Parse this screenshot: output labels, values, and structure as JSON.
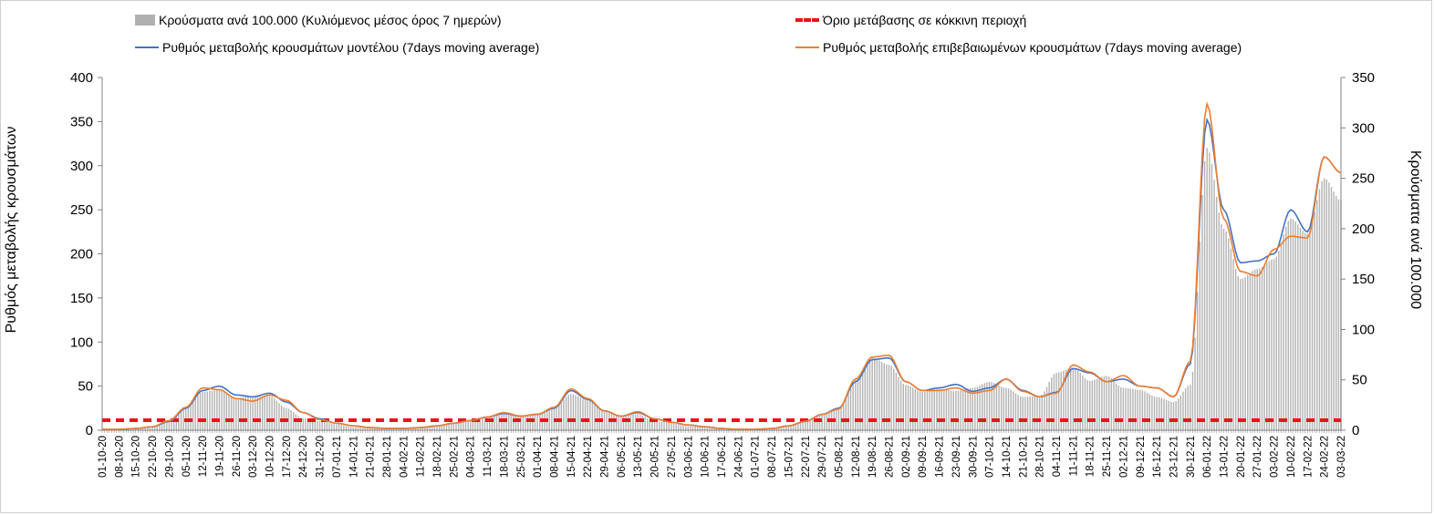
{
  "colors": {
    "bars": "#b4b4b4",
    "model_line": "#4472c4",
    "confirmed_line": "#ed7d31",
    "threshold": "#e8141c",
    "axis": "#808080"
  },
  "chart_data": {
    "type": "bar+line",
    "legend_position": "top",
    "grid": false,
    "y_left": {
      "label": "Ρυθμός μεταβολής κρουσμάτων",
      "min": 0,
      "max": 400,
      "ticks": [
        0,
        50,
        100,
        150,
        200,
        250,
        300,
        350,
        400
      ]
    },
    "y_right": {
      "label": "Κρούσματα ανά 100.000",
      "min": 0,
      "max": 350,
      "ticks": [
        0,
        50,
        100,
        150,
        200,
        250,
        300,
        350
      ]
    },
    "x_start_date": "01-10-20",
    "x_end_date": "03-03-22",
    "x_tick_labels": [
      "01-10-20",
      "08-10-20",
      "15-10-20",
      "22-10-20",
      "29-10-20",
      "05-11-20",
      "12-11-20",
      "19-11-20",
      "26-11-20",
      "03-12-20",
      "10-12-20",
      "17-12-20",
      "24-12-20",
      "31-12-20",
      "07-01-21",
      "14-01-21",
      "21-01-21",
      "28-01-21",
      "04-02-21",
      "11-02-21",
      "18-02-21",
      "25-02-21",
      "04-03-21",
      "11-03-21",
      "18-03-21",
      "25-03-21",
      "01-04-21",
      "08-04-21",
      "15-04-21",
      "22-04-21",
      "29-04-21",
      "06-05-21",
      "13-05-21",
      "20-05-21",
      "27-05-21",
      "03-06-21",
      "10-06-21",
      "17-06-21",
      "24-06-21",
      "01-07-21",
      "08-07-21",
      "15-07-21",
      "22-07-21",
      "29-07-21",
      "05-08-21",
      "12-08-21",
      "19-08-21",
      "26-08-21",
      "02-09-21",
      "09-09-21",
      "16-09-21",
      "23-09-21",
      "30-09-21",
      "07-10-21",
      "14-10-21",
      "21-10-21",
      "28-10-21",
      "04-11-21",
      "11-11-21",
      "18-11-21",
      "25-11-21",
      "02-12-21",
      "09-12-21",
      "16-12-21",
      "23-12-21",
      "30-12-21",
      "06-01-22",
      "13-01-22",
      "20-01-22",
      "27-01-22",
      "03-02-22",
      "10-02-22",
      "17-02-22",
      "24-02-22",
      "03-03-22"
    ],
    "series": [
      {
        "name": "Κρούσματα ανά 100.000 (Κυλιόμενος μέσος όρος 7 ημερών)",
        "type": "bar",
        "axis": "right",
        "weekly_values": [
          1,
          1,
          2,
          4,
          9,
          22,
          38,
          40,
          32,
          34,
          34,
          22,
          12,
          9,
          6,
          3,
          2,
          2,
          2,
          3,
          5,
          7,
          9,
          13,
          17,
          15,
          17,
          22,
          36,
          30,
          20,
          14,
          16,
          9,
          7,
          4,
          3,
          2,
          1,
          1,
          2,
          5,
          10,
          16,
          22,
          50,
          72,
          65,
          45,
          38,
          41,
          39,
          42,
          48,
          42,
          33,
          34,
          57,
          62,
          49,
          54,
          42,
          40,
          33,
          28,
          45,
          280,
          200,
          150,
          160,
          170,
          210,
          195,
          250,
          228
        ]
      },
      {
        "name": "Όριο μετάβασης σε κόκκινη περιοχή",
        "type": "threshold",
        "axis": "right",
        "value": 10
      },
      {
        "name": "Ρυθμός μεταβολής κρουσμάτων μοντέλου (7days moving average)",
        "type": "line",
        "axis": "left",
        "weekly_values": [
          1,
          1,
          2,
          4,
          10,
          25,
          45,
          50,
          40,
          38,
          42,
          32,
          20,
          13,
          8,
          5,
          3,
          2,
          2,
          3,
          5,
          8,
          11,
          15,
          19,
          16,
          18,
          25,
          45,
          35,
          22,
          16,
          20,
          13,
          9,
          6,
          4,
          2,
          1,
          1,
          2,
          5,
          10,
          18,
          25,
          55,
          80,
          82,
          55,
          45,
          48,
          52,
          44,
          48,
          58,
          45,
          38,
          43,
          70,
          65,
          55,
          58,
          50,
          48,
          38,
          75,
          352,
          250,
          190,
          192,
          200,
          250,
          225,
          310,
          292
        ]
      },
      {
        "name": "Ρυθμός μεταβολής επιβεβαιωμένων κρουσμάτων (7days moving average)",
        "type": "line",
        "axis": "left",
        "weekly_values": [
          1,
          1,
          2,
          4,
          11,
          26,
          48,
          46,
          36,
          33,
          40,
          34,
          20,
          12,
          8,
          5,
          3,
          2,
          2,
          3,
          5,
          8,
          11,
          15,
          20,
          16,
          18,
          26,
          47,
          36,
          22,
          16,
          21,
          13,
          9,
          6,
          4,
          2,
          1,
          1,
          2,
          5,
          10,
          18,
          24,
          58,
          83,
          85,
          55,
          45,
          45,
          48,
          42,
          45,
          58,
          44,
          38,
          42,
          74,
          66,
          55,
          62,
          50,
          48,
          38,
          78,
          370,
          240,
          180,
          175,
          205,
          220,
          218,
          310,
          292
        ]
      }
    ]
  },
  "legend": [
    {
      "key": "bars",
      "label": "Κρούσματα ανά 100.000 (Κυλιόμενος μέσος όρος 7 ημερών)"
    },
    {
      "key": "threshold",
      "label": "Όριο μετάβασης σε κόκκινη περιοχή"
    },
    {
      "key": "model",
      "label": "Ρυθμός μεταβολής κρουσμάτων μοντέλου (7days moving average)"
    },
    {
      "key": "confirmed",
      "label": "Ρυθμός μεταβολής επιβεβαιωμένων κρουσμάτων (7days moving average)"
    }
  ]
}
